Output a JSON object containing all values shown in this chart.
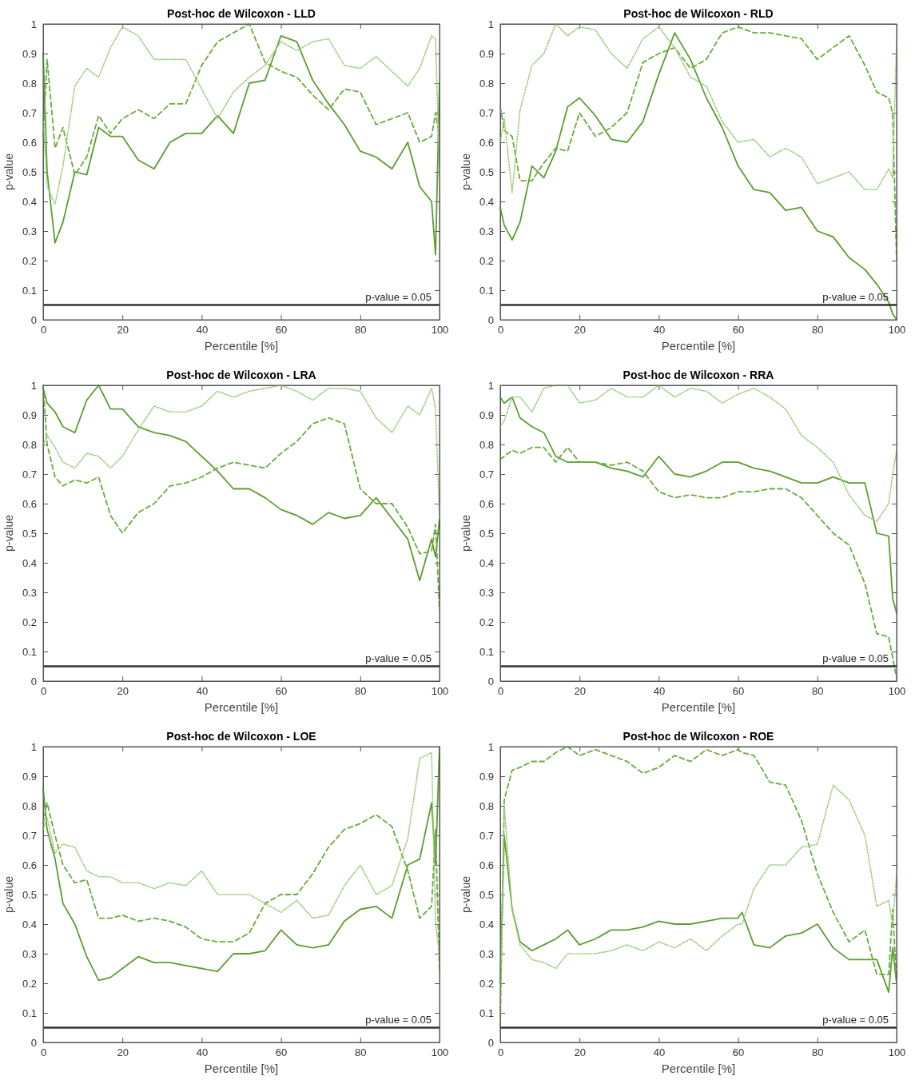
{
  "chart_data": [
    {
      "type": "line",
      "title": "Post-hoc de Wilcoxon - LLD",
      "xlabel": "Percentile [%]",
      "ylabel": "p-value",
      "xlim": [
        0,
        100
      ],
      "xticks": [
        0,
        20,
        40,
        60,
        80,
        100
      ],
      "ylim": [
        0,
        1
      ],
      "yticks": [
        0,
        0.1,
        0.2,
        0.3,
        0.4,
        0.5,
        0.6,
        0.7,
        0.8,
        0.9,
        1
      ],
      "x": [
        0,
        1,
        3,
        5,
        8,
        11,
        14,
        17,
        20,
        24,
        28,
        32,
        36,
        40,
        44,
        48,
        52,
        56,
        60,
        64,
        68,
        72,
        76,
        80,
        84,
        88,
        92,
        95,
        98,
        99,
        100
      ],
      "series": [
        {
          "color": "#5b9e30",
          "line_style": "solid",
          "values": [
            0.9,
            0.5,
            0.26,
            0.33,
            0.5,
            0.49,
            0.65,
            0.62,
            0.62,
            0.54,
            0.51,
            0.6,
            0.63,
            0.63,
            0.69,
            0.63,
            0.8,
            0.81,
            0.96,
            0.94,
            0.81,
            0.73,
            0.66,
            0.57,
            0.55,
            0.51,
            0.6,
            0.45,
            0.4,
            0.22,
            0.8
          ]
        },
        {
          "color": "#6aab3c",
          "line_style": "dashed",
          "values": [
            0.62,
            0.88,
            0.58,
            0.65,
            0.49,
            0.55,
            0.69,
            0.63,
            0.68,
            0.71,
            0.68,
            0.73,
            0.73,
            0.86,
            0.94,
            0.97,
            1.0,
            0.87,
            0.84,
            0.82,
            0.76,
            0.71,
            0.78,
            0.77,
            0.66,
            0.68,
            0.7,
            0.6,
            0.62,
            0.7,
            0.62
          ]
        },
        {
          "color": "#9ccc7c",
          "line_style": "dotted",
          "values": [
            0.68,
            0.45,
            0.39,
            0.52,
            0.79,
            0.85,
            0.82,
            0.92,
            0.99,
            0.96,
            0.88,
            0.88,
            0.88,
            0.78,
            0.68,
            0.77,
            0.82,
            0.86,
            0.94,
            0.91,
            0.94,
            0.95,
            0.86,
            0.85,
            0.89,
            0.84,
            0.79,
            0.85,
            0.96,
            0.95,
            0.5
          ]
        }
      ],
      "ref_lines": [
        {
          "axis": "y",
          "value": 0.05,
          "label": "p-value = 0.05",
          "color": "#333333"
        }
      ]
    },
    {
      "type": "line",
      "title": "Post-hoc de Wilcoxon - RLD",
      "xlabel": "Percentile [%]",
      "ylabel": "p-value",
      "xlim": [
        0,
        100
      ],
      "xticks": [
        0,
        20,
        40,
        60,
        80,
        100
      ],
      "ylim": [
        0,
        1
      ],
      "yticks": [
        0,
        0.1,
        0.2,
        0.3,
        0.4,
        0.5,
        0.6,
        0.7,
        0.8,
        0.9,
        1
      ],
      "x": [
        0,
        1,
        3,
        5,
        8,
        11,
        14,
        17,
        20,
        24,
        28,
        32,
        36,
        40,
        44,
        48,
        52,
        56,
        60,
        64,
        68,
        72,
        76,
        80,
        84,
        88,
        92,
        95,
        98,
        99,
        100
      ],
      "series": [
        {
          "color": "#5b9e30",
          "line_style": "solid",
          "values": [
            0.38,
            0.32,
            0.27,
            0.33,
            0.52,
            0.48,
            0.57,
            0.72,
            0.75,
            0.69,
            0.61,
            0.6,
            0.67,
            0.83,
            0.97,
            0.88,
            0.75,
            0.65,
            0.52,
            0.44,
            0.43,
            0.37,
            0.38,
            0.3,
            0.28,
            0.21,
            0.17,
            0.12,
            0.06,
            0.02,
            0.0
          ]
        },
        {
          "color": "#6aab3c",
          "line_style": "dashed",
          "values": [
            0.72,
            0.64,
            0.62,
            0.47,
            0.47,
            0.53,
            0.58,
            0.57,
            0.7,
            0.62,
            0.65,
            0.7,
            0.87,
            0.9,
            0.92,
            0.85,
            0.88,
            0.97,
            0.99,
            0.97,
            0.97,
            0.96,
            0.95,
            0.88,
            0.92,
            0.96,
            0.86,
            0.77,
            0.75,
            0.7,
            0.2
          ]
        },
        {
          "color": "#9ccc7c",
          "line_style": "dotted",
          "values": [
            0.6,
            0.68,
            0.43,
            0.71,
            0.86,
            0.9,
            1.0,
            0.96,
            0.99,
            0.98,
            0.9,
            0.85,
            0.95,
            0.99,
            0.92,
            0.82,
            0.79,
            0.67,
            0.6,
            0.61,
            0.55,
            0.58,
            0.55,
            0.46,
            0.48,
            0.5,
            0.44,
            0.44,
            0.51,
            0.48,
            0.95
          ]
        }
      ],
      "ref_lines": [
        {
          "axis": "y",
          "value": 0.05,
          "label": "p-value = 0.05",
          "color": "#333333"
        }
      ]
    },
    {
      "type": "line",
      "title": "Post-hoc de Wilcoxon - LRA",
      "xlabel": "Percentile [%]",
      "ylabel": "p-value",
      "xlim": [
        0,
        100
      ],
      "xticks": [
        0,
        20,
        40,
        60,
        80,
        100
      ],
      "ylim": [
        0,
        1
      ],
      "yticks": [
        0,
        0.1,
        0.2,
        0.3,
        0.4,
        0.5,
        0.6,
        0.7,
        0.8,
        0.9,
        1
      ],
      "x": [
        0,
        1,
        3,
        5,
        8,
        11,
        14,
        17,
        20,
        24,
        28,
        32,
        36,
        40,
        44,
        48,
        52,
        56,
        60,
        64,
        68,
        72,
        76,
        80,
        84,
        88,
        92,
        95,
        98,
        99,
        100
      ],
      "series": [
        {
          "color": "#5b9e30",
          "line_style": "solid",
          "values": [
            0.99,
            0.94,
            0.91,
            0.86,
            0.84,
            0.95,
            1.0,
            0.92,
            0.92,
            0.86,
            0.84,
            0.83,
            0.81,
            0.76,
            0.71,
            0.65,
            0.65,
            0.62,
            0.58,
            0.56,
            0.53,
            0.57,
            0.55,
            0.56,
            0.62,
            0.55,
            0.48,
            0.34,
            0.48,
            0.42,
            0.55
          ]
        },
        {
          "color": "#6aab3c",
          "line_style": "dashed",
          "values": [
            1.0,
            0.8,
            0.69,
            0.66,
            0.68,
            0.67,
            0.69,
            0.56,
            0.5,
            0.57,
            0.6,
            0.66,
            0.67,
            0.69,
            0.72,
            0.74,
            0.73,
            0.72,
            0.77,
            0.81,
            0.87,
            0.89,
            0.87,
            0.65,
            0.6,
            0.6,
            0.52,
            0.43,
            0.44,
            0.53,
            0.24
          ]
        },
        {
          "color": "#9ccc7c",
          "line_style": "dotted",
          "values": [
            0.8,
            0.83,
            0.79,
            0.74,
            0.72,
            0.77,
            0.76,
            0.72,
            0.76,
            0.85,
            0.93,
            0.91,
            0.91,
            0.93,
            0.98,
            0.96,
            0.98,
            0.99,
            1.0,
            0.98,
            0.95,
            0.99,
            0.99,
            0.98,
            0.89,
            0.84,
            0.93,
            0.9,
            0.99,
            0.92,
            0.55
          ]
        }
      ],
      "ref_lines": [
        {
          "axis": "y",
          "value": 0.05,
          "label": "p-value = 0.05",
          "color": "#333333"
        }
      ]
    },
    {
      "type": "line",
      "title": "Post-hoc de Wilcoxon - RRA",
      "xlabel": "Percentile [%]",
      "ylabel": "p-value",
      "xlim": [
        0,
        100
      ],
      "xticks": [
        0,
        20,
        40,
        60,
        80,
        100
      ],
      "ylim": [
        0,
        1
      ],
      "yticks": [
        0,
        0.1,
        0.2,
        0.3,
        0.4,
        0.5,
        0.6,
        0.7,
        0.8,
        0.9,
        1
      ],
      "x": [
        0,
        1,
        3,
        5,
        8,
        11,
        14,
        17,
        20,
        24,
        28,
        32,
        36,
        40,
        44,
        48,
        52,
        56,
        60,
        64,
        68,
        72,
        76,
        80,
        84,
        88,
        92,
        95,
        98,
        99,
        100
      ],
      "series": [
        {
          "color": "#5b9e30",
          "line_style": "solid",
          "values": [
            0.96,
            0.94,
            0.96,
            0.89,
            0.86,
            0.84,
            0.76,
            0.74,
            0.74,
            0.74,
            0.72,
            0.71,
            0.69,
            0.76,
            0.7,
            0.69,
            0.71,
            0.74,
            0.74,
            0.72,
            0.71,
            0.69,
            0.67,
            0.67,
            0.69,
            0.67,
            0.67,
            0.5,
            0.49,
            0.28,
            0.23
          ]
        },
        {
          "color": "#6aab3c",
          "line_style": "dashed",
          "values": [
            0.75,
            0.76,
            0.78,
            0.77,
            0.79,
            0.79,
            0.74,
            0.79,
            0.74,
            0.74,
            0.73,
            0.74,
            0.71,
            0.64,
            0.62,
            0.63,
            0.62,
            0.62,
            0.64,
            0.64,
            0.65,
            0.65,
            0.62,
            0.56,
            0.5,
            0.46,
            0.33,
            0.16,
            0.15,
            0.08,
            0.01
          ]
        },
        {
          "color": "#9ccc7c",
          "line_style": "dotted",
          "values": [
            0.86,
            0.88,
            0.96,
            0.96,
            0.91,
            0.99,
            1.0,
            1.0,
            0.94,
            0.95,
            0.99,
            0.96,
            0.96,
            1.0,
            0.96,
            0.99,
            0.98,
            0.94,
            0.97,
            0.99,
            0.96,
            0.92,
            0.83,
            0.79,
            0.74,
            0.63,
            0.56,
            0.54,
            0.6,
            0.7,
            0.78
          ]
        }
      ],
      "ref_lines": [
        {
          "axis": "y",
          "value": 0.05,
          "label": "p-value = 0.05",
          "color": "#333333"
        }
      ]
    },
    {
      "type": "line",
      "title": "Post-hoc de Wilcoxon - LOE",
      "xlabel": "Percentile [%]",
      "ylabel": "p-value",
      "xlim": [
        0,
        100
      ],
      "xticks": [
        0,
        20,
        40,
        60,
        80,
        100
      ],
      "ylim": [
        0,
        1
      ],
      "yticks": [
        0,
        0.1,
        0.2,
        0.3,
        0.4,
        0.5,
        0.6,
        0.7,
        0.8,
        0.9,
        1
      ],
      "x": [
        0,
        1,
        3,
        5,
        8,
        11,
        14,
        17,
        20,
        24,
        28,
        32,
        36,
        40,
        44,
        48,
        52,
        56,
        60,
        64,
        68,
        72,
        76,
        80,
        84,
        88,
        92,
        95,
        98,
        99,
        100
      ],
      "series": [
        {
          "color": "#5b9e30",
          "line_style": "solid",
          "values": [
            0.86,
            0.72,
            0.62,
            0.47,
            0.4,
            0.29,
            0.21,
            0.22,
            0.25,
            0.29,
            0.27,
            0.27,
            0.26,
            0.25,
            0.24,
            0.3,
            0.3,
            0.31,
            0.38,
            0.33,
            0.32,
            0.33,
            0.41,
            0.45,
            0.46,
            0.42,
            0.6,
            0.62,
            0.81,
            0.6,
            1.0
          ]
        },
        {
          "color": "#6aab3c",
          "line_style": "dashed",
          "values": [
            0.74,
            0.81,
            0.7,
            0.6,
            0.54,
            0.55,
            0.42,
            0.42,
            0.43,
            0.41,
            0.42,
            0.41,
            0.39,
            0.35,
            0.34,
            0.34,
            0.37,
            0.47,
            0.5,
            0.5,
            0.57,
            0.66,
            0.72,
            0.74,
            0.77,
            0.73,
            0.58,
            0.42,
            0.46,
            0.72,
            0.24
          ]
        },
        {
          "color": "#9ccc7c",
          "line_style": "dotted",
          "values": [
            0.72,
            0.76,
            0.64,
            0.67,
            0.66,
            0.58,
            0.56,
            0.56,
            0.54,
            0.54,
            0.52,
            0.54,
            0.53,
            0.58,
            0.5,
            0.5,
            0.5,
            0.47,
            0.44,
            0.48,
            0.42,
            0.43,
            0.53,
            0.6,
            0.5,
            0.53,
            0.69,
            0.96,
            0.98,
            0.4,
            0.3
          ]
        }
      ],
      "ref_lines": [
        {
          "axis": "y",
          "value": 0.05,
          "label": "p-value = 0.05",
          "color": "#333333"
        }
      ]
    },
    {
      "type": "line",
      "title": "Post-hoc de Wilcoxon - ROE",
      "xlabel": "Percentile [%]",
      "ylabel": "p-value",
      "xlim": [
        0,
        100
      ],
      "xticks": [
        0,
        20,
        40,
        60,
        80,
        100
      ],
      "ylim": [
        0,
        1
      ],
      "yticks": [
        0,
        0.1,
        0.2,
        0.3,
        0.4,
        0.5,
        0.6,
        0.7,
        0.8,
        0.9,
        1
      ],
      "x": [
        0,
        1,
        3,
        5,
        8,
        11,
        14,
        17,
        20,
        24,
        28,
        32,
        36,
        40,
        44,
        48,
        52,
        56,
        60,
        61,
        64,
        68,
        72,
        76,
        80,
        84,
        88,
        92,
        95,
        98,
        99,
        100
      ],
      "series": [
        {
          "color": "#5b9e30",
          "line_style": "solid",
          "values": [
            0.2,
            0.7,
            0.45,
            0.34,
            0.31,
            0.33,
            0.35,
            0.38,
            0.33,
            0.35,
            0.38,
            0.38,
            0.39,
            0.41,
            0.4,
            0.4,
            0.41,
            0.42,
            0.42,
            0.44,
            0.33,
            0.32,
            0.36,
            0.37,
            0.4,
            0.32,
            0.28,
            0.28,
            0.28,
            0.17,
            0.32,
            0.2
          ]
        },
        {
          "color": "#6aab3c",
          "line_style": "dashed",
          "values": [
            0.05,
            0.82,
            0.92,
            0.93,
            0.95,
            0.95,
            0.98,
            1.0,
            0.97,
            0.99,
            0.97,
            0.95,
            0.91,
            0.93,
            0.97,
            0.95,
            0.99,
            0.97,
            0.99,
            0.98,
            0.97,
            0.88,
            0.87,
            0.75,
            0.57,
            0.44,
            0.34,
            0.38,
            0.23,
            0.23,
            0.45,
            0.2
          ]
        },
        {
          "color": "#9ccc7c",
          "line_style": "dotted",
          "values": [
            0.1,
            0.8,
            0.45,
            0.33,
            0.28,
            0.27,
            0.25,
            0.3,
            0.3,
            0.3,
            0.31,
            0.33,
            0.31,
            0.34,
            0.32,
            0.35,
            0.31,
            0.36,
            0.4,
            0.4,
            0.52,
            0.6,
            0.6,
            0.66,
            0.67,
            0.87,
            0.82,
            0.7,
            0.46,
            0.48,
            0.4,
            0.57
          ]
        }
      ],
      "ref_lines": [
        {
          "axis": "y",
          "value": 0.05,
          "label": "p-value = 0.05",
          "color": "#333333"
        }
      ]
    }
  ]
}
